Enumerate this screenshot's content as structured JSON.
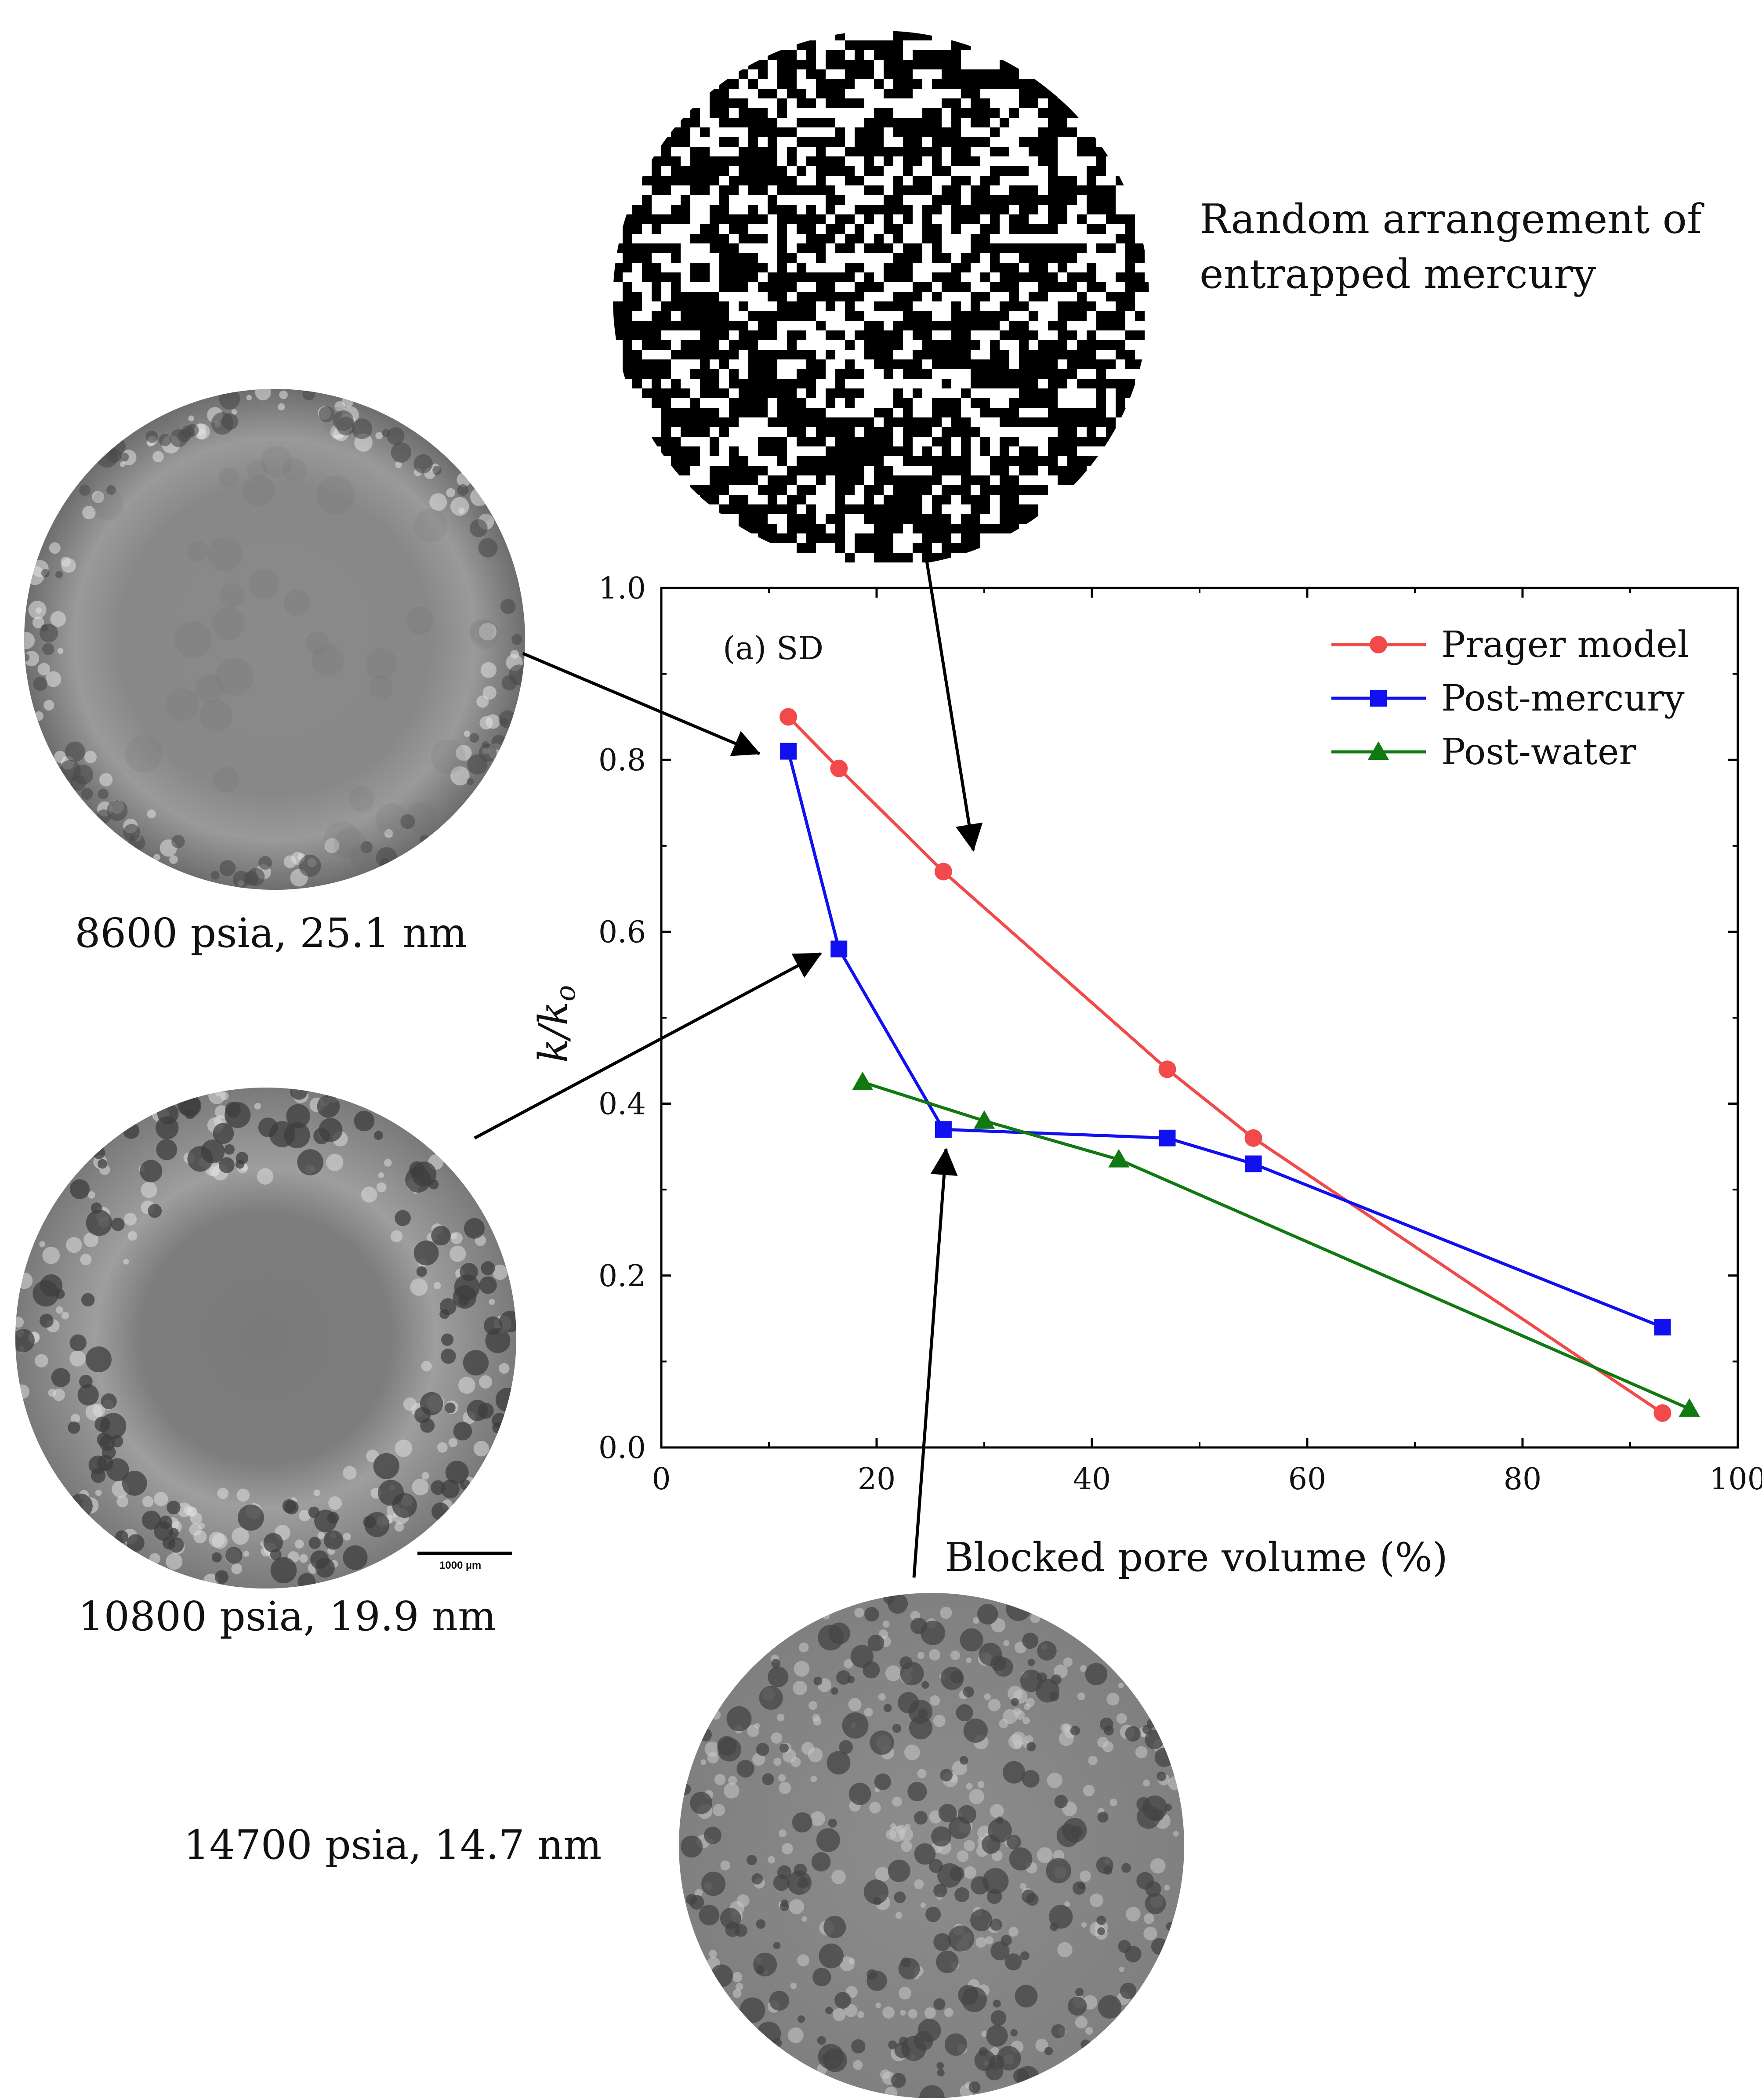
{
  "captions": {
    "random": "Random arrangement of entrapped mercury",
    "random_line1": "Random arrangement of",
    "random_line2": "entrapped mercury",
    "sample_8600": "8600 psia, 25.1 nm",
    "sample_10800": "10800 psia, 19.9 nm",
    "sample_14700": "14700 psia, 14.7 nm",
    "scale_bar": "1000 µm"
  },
  "chart_data": {
    "type": "line",
    "panel_label": "(a) SD",
    "xlabel": "Blocked pore volume (%)",
    "ylabel": "k/k",
    "ylabel_subscript": "o",
    "xlim": [
      0,
      100
    ],
    "ylim": [
      0.0,
      1.0
    ],
    "xticks": [
      0,
      20,
      40,
      60,
      80,
      100
    ],
    "xtick_labels": [
      "0",
      "20",
      "40",
      "60",
      "80",
      "100"
    ],
    "yticks": [
      0.0,
      0.2,
      0.4,
      0.6,
      0.8,
      1.0
    ],
    "ytick_labels": [
      "0.0",
      "0.2",
      "0.4",
      "0.6",
      "0.8",
      "1.0"
    ],
    "grid": false,
    "legend_position": "top-right",
    "series": [
      {
        "name": "Prager model",
        "color": "#f24a4a",
        "marker": "circle",
        "x": [
          11.8,
          16.5,
          26.2,
          47.0,
          55.0,
          93.0
        ],
        "y": [
          0.85,
          0.79,
          0.67,
          0.44,
          0.36,
          0.04
        ]
      },
      {
        "name": "Post-mercury",
        "color": "#1010f0",
        "marker": "square",
        "x": [
          11.8,
          16.5,
          26.2,
          47.0,
          55.0,
          93.0
        ],
        "y": [
          0.81,
          0.58,
          0.37,
          0.36,
          0.33,
          0.14
        ]
      },
      {
        "name": "Post-water",
        "color": "#107a10",
        "marker": "triangle",
        "x": [
          18.7,
          30.0,
          42.5,
          95.5
        ],
        "y": [
          0.425,
          0.38,
          0.335,
          0.045
        ]
      }
    ]
  }
}
